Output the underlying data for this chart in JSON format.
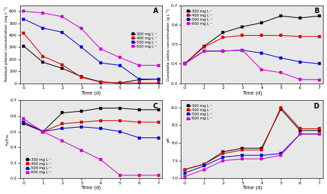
{
  "time": [
    0,
    1,
    2,
    3,
    4,
    5,
    6,
    7
  ],
  "panel_A": {
    "title": "A",
    "ylabel": "Residual phenol concentration (mg L⁻¹)",
    "xlabel": "Time (d)",
    "series": {
      "300 mg L⁻¹": {
        "color": "#000000",
        "data": [
          310,
          175,
          125,
          55,
          12,
          3,
          30,
          35
        ]
      },
      "400 mg L⁻¹": {
        "color": "#cc0000",
        "data": [
          415,
          225,
          155,
          50,
          10,
          3,
          3,
          3
        ]
      },
      "500 mg L⁻¹": {
        "color": "#0000cc",
        "data": [
          535,
          460,
          425,
          300,
          170,
          150,
          35,
          35
        ]
      },
      "600 mg L⁻¹": {
        "color": "#cc00cc",
        "data": [
          600,
          585,
          555,
          455,
          285,
          215,
          150,
          150
        ]
      }
    },
    "ylim": [
      0,
      650
    ],
    "yticks": [
      0,
      100,
      200,
      300,
      400,
      500,
      600
    ],
    "legend_loc": "center right",
    "legend_bbox": null
  },
  "panel_B": {
    "title": "B",
    "ylabel": "Dunaliella salina concentration (g L⁻¹)",
    "xlabel": "Time (d)",
    "series": {
      "300 mg L⁻¹": {
        "color": "#000000",
        "data": [
          0.4,
          0.49,
          0.56,
          0.59,
          0.61,
          0.645,
          0.635,
          0.645
        ]
      },
      "400 mg L⁻¹": {
        "color": "#cc0000",
        "data": [
          0.4,
          0.485,
          0.535,
          0.545,
          0.545,
          0.545,
          0.54,
          0.54
        ]
      },
      "500 mg L⁻¹": {
        "color": "#0000cc",
        "data": [
          0.4,
          0.465,
          0.465,
          0.47,
          0.455,
          0.43,
          0.41,
          0.4
        ]
      },
      "600 mg L⁻¹": {
        "color": "#cc00cc",
        "data": [
          0.4,
          0.465,
          0.465,
          0.47,
          0.37,
          0.355,
          0.32,
          0.318
        ]
      }
    },
    "ylim": [
      0.3,
      0.7
    ],
    "yticks": [
      0.3,
      0.4,
      0.5,
      0.6,
      0.7
    ],
    "legend_loc": "upper left",
    "legend_bbox": null
  },
  "panel_C": {
    "title": "C",
    "ylabel": "Fv/Fm",
    "xlabel": "Time (d)",
    "series": {
      "300 mg L⁻¹": {
        "color": "#000000",
        "data": [
          0.55,
          0.5,
          0.62,
          0.63,
          0.65,
          0.65,
          0.64,
          0.64
        ]
      },
      "400 mg L⁻¹": {
        "color": "#cc0000",
        "data": [
          0.56,
          0.5,
          0.55,
          0.56,
          0.57,
          0.57,
          0.56,
          0.56
        ]
      },
      "500 mg L⁻¹": {
        "color": "#0000cc",
        "data": [
          0.56,
          0.5,
          0.52,
          0.53,
          0.52,
          0.5,
          0.46,
          0.46
        ]
      },
      "600 mg L⁻¹": {
        "color": "#cc00cc",
        "data": [
          0.58,
          0.5,
          0.44,
          0.38,
          0.32,
          0.22,
          0.22,
          0.22
        ]
      }
    },
    "ylim": [
      0.2,
      0.7
    ],
    "yticks": [
      0.2,
      0.3,
      0.4,
      0.5,
      0.6,
      0.7
    ],
    "legend_loc": "lower left",
    "legend_bbox": null
  },
  "panel_D": {
    "title": "D",
    "ylabel": "pH",
    "xlabel": "Time (d)",
    "series": {
      "300 mg L⁻¹": {
        "color": "#000000",
        "data": [
          7.25,
          7.4,
          7.75,
          7.85,
          7.85,
          8.95,
          8.35,
          8.35
        ]
      },
      "400 mg L⁻¹": {
        "color": "#cc0000",
        "data": [
          7.25,
          7.4,
          7.7,
          7.8,
          7.8,
          9.0,
          8.4,
          8.4
        ]
      },
      "500 mg L⁻¹": {
        "color": "#0000cc",
        "data": [
          7.15,
          7.35,
          7.6,
          7.65,
          7.65,
          7.7,
          8.25,
          8.25
        ]
      },
      "600 mg L⁻¹": {
        "color": "#cc00cc",
        "data": [
          7.05,
          7.25,
          7.5,
          7.55,
          7.55,
          7.65,
          8.25,
          8.25
        ]
      }
    },
    "ylim": [
      7.0,
      9.2
    ],
    "yticks": [
      7.0,
      7.5,
      8.0,
      8.5,
      9.0
    ],
    "legend_loc": "upper left",
    "legend_bbox": null
  },
  "legend_labels": [
    "300 mg L⁻¹",
    "400 mg L⁻¹",
    "500 mg L⁻¹",
    "600 mg L⁻¹"
  ],
  "colors": [
    "#000000",
    "#cc0000",
    "#0000cc",
    "#cc00cc"
  ],
  "bg_color": "#e8e8e8"
}
